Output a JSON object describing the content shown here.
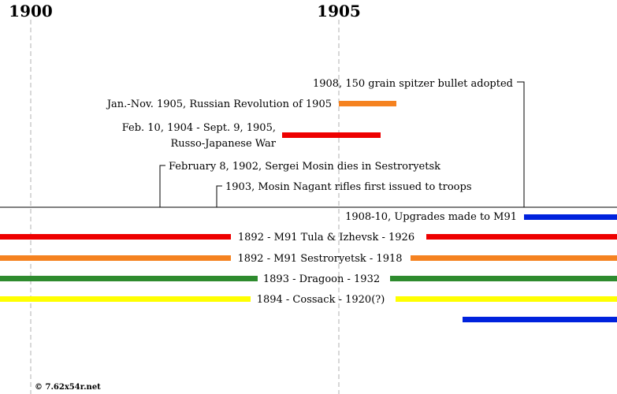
{
  "colors": {
    "red": "#ee0000",
    "orange": "#f58220",
    "green": "#2e8b2e",
    "yellow": "#ffff00",
    "blue": "#0022dd",
    "gridline": "#b0b0b0",
    "axis": "#000000"
  },
  "axis": {
    "year_labels": [
      "1900",
      "1905"
    ]
  },
  "events_above": {
    "spitzer": "1908, 150 grain spitzer bullet adopted",
    "revolution": "Jan.-Nov. 1905, Russian Revolution of 1905",
    "war_line1": "Feb. 10, 1904 - Sept. 9, 1905,",
    "war_line2": "Russo-Japanese War",
    "mosin_dies": "February 8, 1902, Sergei Mosin dies in Sestroryetsk",
    "first_issued": "1903, Mosin Nagant rifles first issued to troops"
  },
  "production": {
    "upgrades": "1908-10, Upgrades made to M91",
    "tula": "1892 - M91 Tula & Izhevsk - 1926",
    "sestroryetsk": "1892 - M91 Sestroryetsk - 1918",
    "dragoon": "1893 - Dragoon - 1932",
    "cossack": "1894 - Cossack - 1920(?)"
  },
  "credit": "© 7.62x54r.net"
}
